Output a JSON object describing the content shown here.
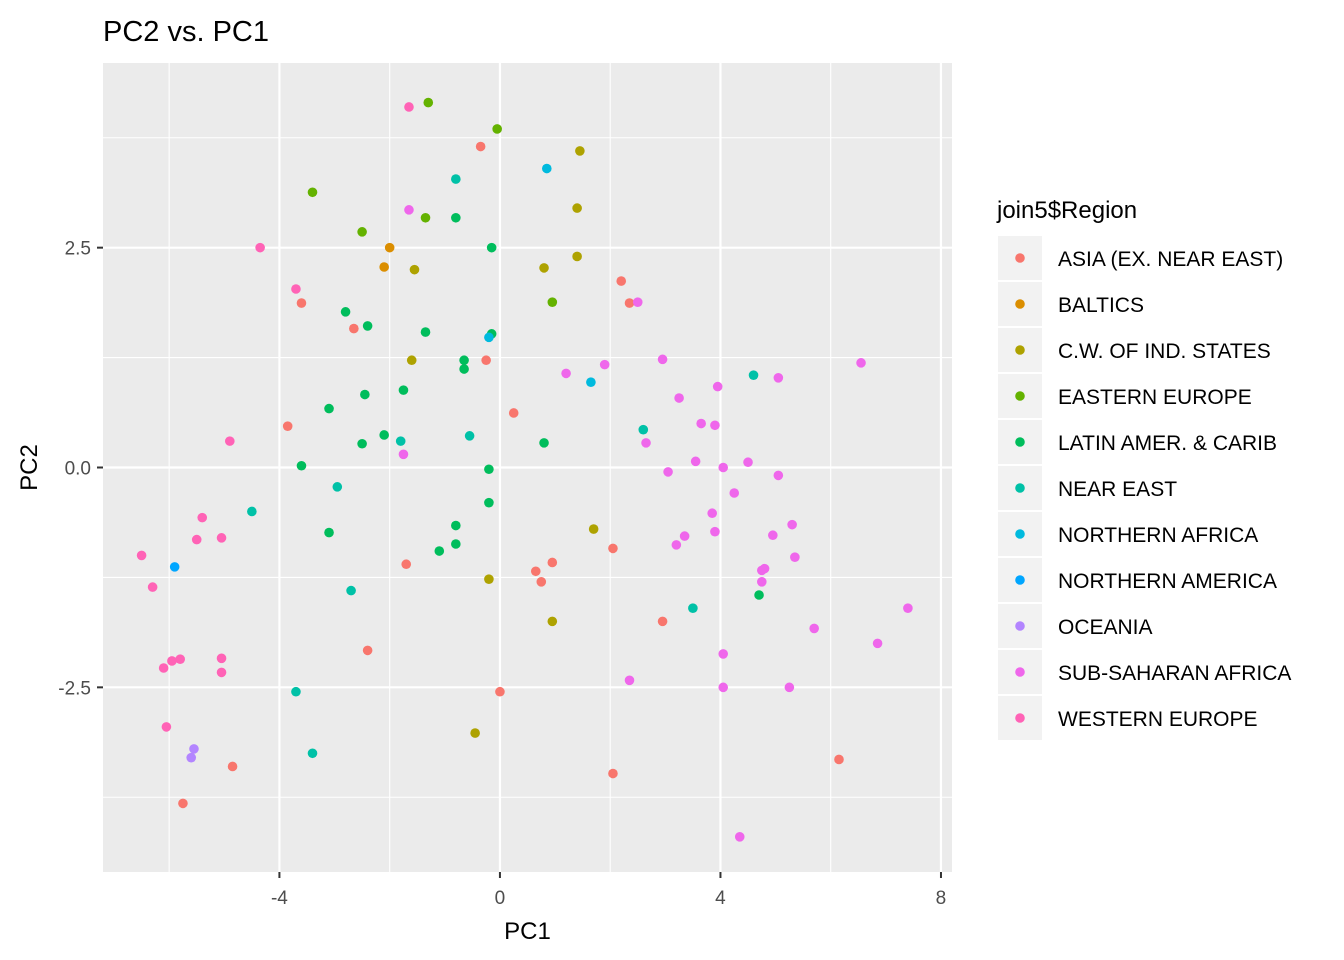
{
  "chart_data": {
    "type": "scatter",
    "title": "PC2 vs. PC1",
    "xlabel": "PC1",
    "ylabel": "PC2",
    "xlim": [
      -7.2,
      8.2
    ],
    "ylim": [
      -4.6,
      4.6
    ],
    "xticks": [
      -4,
      0,
      4,
      8
    ],
    "xtick_labels": [
      "-4",
      "0",
      "4",
      "8"
    ],
    "yticks": [
      -2.5,
      0,
      2.5
    ],
    "ytick_labels": [
      "-2.5",
      "0.0",
      "2.5"
    ],
    "grid": true,
    "legend_title": "join5$Region",
    "legend_position": "right",
    "series": [
      {
        "name": "ASIA (EX. NEAR EAST)",
        "color": "#F8766D",
        "points": [
          [
            -0.35,
            3.65
          ],
          [
            2.2,
            2.12
          ],
          [
            2.35,
            1.87
          ],
          [
            -3.6,
            1.87
          ],
          [
            -2.65,
            1.58
          ],
          [
            -0.25,
            1.22
          ],
          [
            0.25,
            0.62
          ],
          [
            -3.85,
            0.47
          ],
          [
            -1.7,
            -1.1
          ],
          [
            0.65,
            -1.18
          ],
          [
            0.75,
            -1.3
          ],
          [
            0.95,
            -1.08
          ],
          [
            2.05,
            -0.92
          ],
          [
            2.95,
            -1.75
          ],
          [
            -2.4,
            -2.08
          ],
          [
            0.0,
            -2.55
          ],
          [
            6.15,
            -3.32
          ],
          [
            -4.85,
            -3.4
          ],
          [
            -5.75,
            -3.82
          ],
          [
            2.05,
            -3.48
          ]
        ]
      },
      {
        "name": "BALTICS",
        "color": "#DB8E00",
        "points": [
          [
            -2.0,
            2.5
          ],
          [
            -2.1,
            2.28
          ]
        ]
      },
      {
        "name": "C.W. OF IND. STATES",
        "color": "#AEA200",
        "points": [
          [
            1.45,
            3.6
          ],
          [
            1.4,
            2.95
          ],
          [
            1.4,
            2.4
          ],
          [
            0.8,
            2.27
          ],
          [
            -1.55,
            2.25
          ],
          [
            -1.6,
            1.22
          ],
          [
            1.7,
            -0.7
          ],
          [
            -0.2,
            -1.27
          ],
          [
            0.95,
            -1.75
          ],
          [
            -0.45,
            -3.02
          ]
        ]
      },
      {
        "name": "EASTERN EUROPE",
        "color": "#64B200",
        "points": [
          [
            -1.3,
            4.15
          ],
          [
            -0.05,
            3.85
          ],
          [
            -3.4,
            3.13
          ],
          [
            -2.5,
            2.68
          ],
          [
            -1.35,
            2.84
          ],
          [
            0.95,
            1.88
          ]
        ]
      },
      {
        "name": "LATIN AMER. & CARIB",
        "color": "#00BD5C",
        "points": [
          [
            -0.8,
            2.84
          ],
          [
            -0.15,
            2.5
          ],
          [
            -2.8,
            1.77
          ],
          [
            -2.4,
            1.61
          ],
          [
            -1.35,
            1.54
          ],
          [
            -0.15,
            1.52
          ],
          [
            -0.65,
            1.22
          ],
          [
            -0.65,
            1.12
          ],
          [
            -1.75,
            0.88
          ],
          [
            -2.45,
            0.83
          ],
          [
            -3.1,
            0.67
          ],
          [
            -2.1,
            0.37
          ],
          [
            -2.5,
            0.27
          ],
          [
            0.8,
            0.28
          ],
          [
            -3.6,
            0.02
          ],
          [
            -0.2,
            -0.02
          ],
          [
            -0.2,
            -0.4
          ],
          [
            -0.8,
            -0.66
          ],
          [
            -3.1,
            -0.74
          ],
          [
            -0.8,
            -0.87
          ],
          [
            -1.1,
            -0.95
          ],
          [
            4.7,
            -1.45
          ]
        ]
      },
      {
        "name": "NEAR EAST",
        "color": "#00C1A7",
        "points": [
          [
            -0.8,
            3.28
          ],
          [
            4.6,
            1.05
          ],
          [
            2.6,
            0.43
          ],
          [
            -0.55,
            0.36
          ],
          [
            -1.8,
            0.3
          ],
          [
            -2.95,
            -0.22
          ],
          [
            -4.5,
            -0.5
          ],
          [
            3.5,
            -1.6
          ],
          [
            -2.7,
            -1.4
          ],
          [
            -3.7,
            -2.55
          ],
          [
            -3.4,
            -3.25
          ]
        ]
      },
      {
        "name": "NORTHERN AFRICA",
        "color": "#00BADE",
        "points": [
          [
            0.85,
            3.4
          ],
          [
            -0.2,
            1.48
          ],
          [
            1.65,
            0.97
          ]
        ]
      },
      {
        "name": "NORTHERN AMERICA",
        "color": "#00A6FF",
        "points": [
          [
            -5.9,
            -1.13
          ]
        ]
      },
      {
        "name": "OCEANIA",
        "color": "#B385FF",
        "points": [
          [
            -5.55,
            -3.2
          ],
          [
            -5.6,
            -3.3
          ]
        ]
      },
      {
        "name": "SUB-SAHARAN AFRICA",
        "color": "#EF67EB",
        "points": [
          [
            -1.65,
            2.93
          ],
          [
            2.5,
            1.88
          ],
          [
            2.95,
            1.23
          ],
          [
            1.9,
            1.17
          ],
          [
            1.2,
            1.07
          ],
          [
            6.55,
            1.19
          ],
          [
            5.05,
            1.02
          ],
          [
            3.95,
            0.92
          ],
          [
            3.25,
            0.79
          ],
          [
            3.65,
            0.5
          ],
          [
            3.9,
            0.48
          ],
          [
            2.65,
            0.28
          ],
          [
            -1.75,
            0.15
          ],
          [
            3.55,
            0.07
          ],
          [
            4.5,
            0.06
          ],
          [
            3.05,
            -0.05
          ],
          [
            4.05,
            0.0
          ],
          [
            5.05,
            -0.09
          ],
          [
            4.25,
            -0.29
          ],
          [
            3.85,
            -0.52
          ],
          [
            5.3,
            -0.65
          ],
          [
            3.35,
            -0.78
          ],
          [
            3.9,
            -0.73
          ],
          [
            4.95,
            -0.77
          ],
          [
            3.2,
            -0.88
          ],
          [
            5.35,
            -1.02
          ],
          [
            4.8,
            -1.15
          ],
          [
            4.75,
            -1.17
          ],
          [
            4.75,
            -1.3
          ],
          [
            7.4,
            -1.6
          ],
          [
            5.7,
            -1.83
          ],
          [
            6.85,
            -2.0
          ],
          [
            4.05,
            -2.12
          ],
          [
            2.35,
            -2.42
          ],
          [
            5.25,
            -2.5
          ],
          [
            4.05,
            -2.5
          ],
          [
            4.35,
            -4.2
          ]
        ]
      },
      {
        "name": "WESTERN EUROPE",
        "color": "#FF63B6",
        "points": [
          [
            -1.65,
            4.1
          ],
          [
            -4.35,
            2.5
          ],
          [
            -3.7,
            2.03
          ],
          [
            -4.9,
            0.3
          ],
          [
            -5.4,
            -0.57
          ],
          [
            -5.5,
            -0.82
          ],
          [
            -5.05,
            -0.8
          ],
          [
            -6.5,
            -1.0
          ],
          [
            -6.3,
            -1.36
          ],
          [
            -5.8,
            -2.18
          ],
          [
            -5.95,
            -2.2
          ],
          [
            -6.1,
            -2.28
          ],
          [
            -5.05,
            -2.17
          ],
          [
            -5.05,
            -2.33
          ],
          [
            -6.05,
            -2.95
          ]
        ]
      }
    ]
  }
}
